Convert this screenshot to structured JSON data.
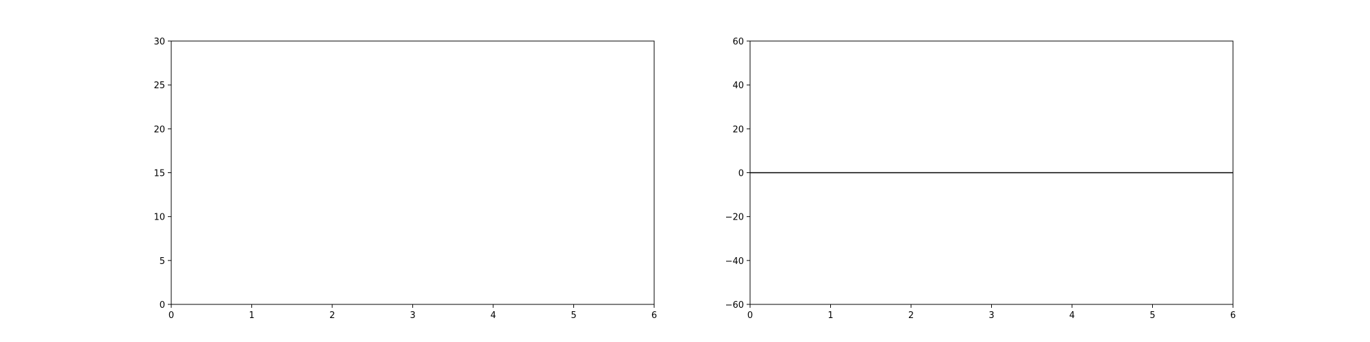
{
  "chart_data": [
    {
      "type": "line",
      "title": "",
      "xlabel": "",
      "ylabel": "",
      "xlim": [
        0,
        6
      ],
      "ylim": [
        0,
        30
      ],
      "x_ticks": [
        0,
        1,
        2,
        3,
        4,
        5,
        6
      ],
      "y_ticks": [
        0,
        5,
        10,
        15,
        20,
        25,
        30
      ],
      "x_tick_labels": [
        "0",
        "1",
        "2",
        "3",
        "4",
        "5",
        "6"
      ],
      "y_tick_labels": [
        "0",
        "5",
        "10",
        "15",
        "20",
        "25",
        "30"
      ],
      "grid": false,
      "series": [],
      "hlines": []
    },
    {
      "type": "line",
      "title": "",
      "xlabel": "",
      "ylabel": "",
      "xlim": [
        0,
        6
      ],
      "ylim": [
        -60,
        60
      ],
      "x_ticks": [
        0,
        1,
        2,
        3,
        4,
        5,
        6
      ],
      "y_ticks": [
        -60,
        -40,
        -20,
        0,
        20,
        40,
        60
      ],
      "x_tick_labels": [
        "0",
        "1",
        "2",
        "3",
        "4",
        "5",
        "6"
      ],
      "y_tick_labels": [
        "−60",
        "−40",
        "−20",
        "0",
        "20",
        "40",
        "60"
      ],
      "grid": false,
      "series": [],
      "hlines": [
        {
          "y": 0,
          "color": "#000000"
        }
      ]
    }
  ]
}
